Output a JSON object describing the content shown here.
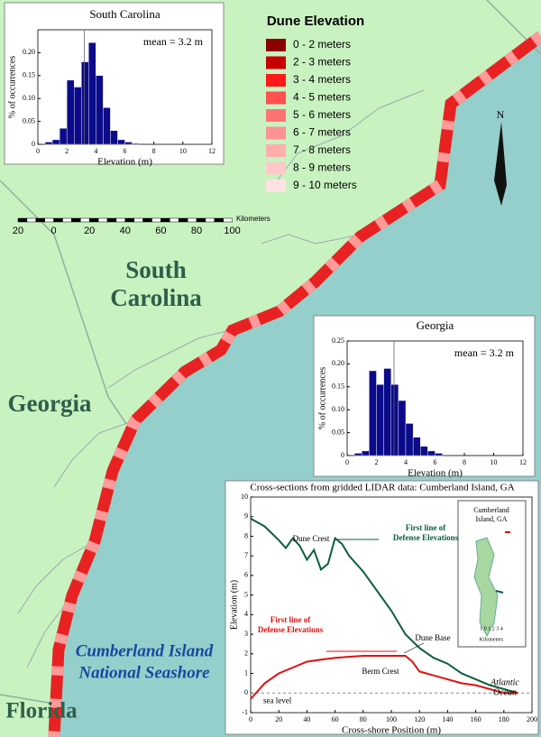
{
  "map": {
    "legend": {
      "title": "Dune Elevation",
      "items": [
        {
          "label": "0 - 2 meters",
          "color": "#8b0000"
        },
        {
          "label": "2 - 3 meters",
          "color": "#c80000"
        },
        {
          "label": "3 - 4 meters",
          "color": "#ff1a1a"
        },
        {
          "label": "4 - 5 meters",
          "color": "#ff4f4f"
        },
        {
          "label": "5 - 6 meters",
          "color": "#ff7373"
        },
        {
          "label": "6 - 7 meters",
          "color": "#ff9393"
        },
        {
          "label": "7 - 8 meters",
          "color": "#ffaeae"
        },
        {
          "label": "8 - 9 meters",
          "color": "#ffc9c9"
        },
        {
          "label": "9 - 10 meters",
          "color": "#ffe2e2"
        }
      ]
    },
    "scale_bar": {
      "ticks": [
        "20",
        "0",
        "20",
        "40",
        "60",
        "80",
        "100"
      ],
      "unit": "Kilometers"
    },
    "labels": {
      "south_carolina": [
        "South",
        "Carolina"
      ],
      "georgia": "Georgia",
      "florida": "Florida",
      "cumberland": [
        "Cumberland Island",
        "National Seashore"
      ]
    }
  },
  "chart_data": [
    {
      "type": "histogram",
      "title": "South Carolina",
      "xlabel": "Elevation (m)",
      "ylabel": "% of occurrences",
      "bins": [
        0.5,
        1,
        1.5,
        2,
        2.5,
        3,
        3.5,
        4,
        4.5,
        5,
        5.5,
        6,
        6.5,
        7
      ],
      "values": [
        0.005,
        0.01,
        0.035,
        0.14,
        0.125,
        0.18,
        0.222,
        0.15,
        0.08,
        0.03,
        0.01,
        0.005,
        0.002
      ],
      "color": "#0b0b8a",
      "xlim": [
        0,
        12
      ],
      "xticks": [
        0,
        2,
        4,
        6,
        8,
        10,
        12
      ],
      "ylim": [
        0,
        0.25
      ],
      "yticks": [
        0,
        0.05,
        {
          "value": 0.1,
          "label": "0.10"
        },
        0.15,
        {
          "value": 0.2,
          "label": "0.20"
        }
      ],
      "mean": {
        "value": 3.2,
        "label": "mean = 3.2 m"
      }
    },
    {
      "type": "histogram",
      "title": "Georgia",
      "xlabel": "Elevation (m)",
      "ylabel": "% of occurrences",
      "bins": [
        0.5,
        1,
        1.5,
        2,
        2.5,
        3,
        3.5,
        4,
        4.5,
        5,
        5.5,
        6,
        6.5
      ],
      "values": [
        0.005,
        0.01,
        0.185,
        0.155,
        0.19,
        0.155,
        0.12,
        0.07,
        0.04,
        0.02,
        0.01,
        0.005
      ],
      "color": "#0b0b8a",
      "xlim": [
        0,
        12
      ],
      "xticks": [
        0,
        2,
        4,
        6,
        8,
        10,
        12
      ],
      "ylim": [
        0,
        0.25
      ],
      "yticks": [
        0,
        0.05,
        {
          "value": 0.1,
          "label": "0.10"
        },
        0.15,
        {
          "value": 0.2,
          "label": "0.20"
        },
        0.25
      ],
      "mean": {
        "value": 3.2,
        "label": "mean = 3.2 m"
      }
    },
    {
      "type": "line",
      "title": "Cross-sections from gridded LIDAR data: Cumberland Island, GA",
      "xlabel": "Cross-shore Position (m)",
      "ylabel": "Elevation (m)",
      "xlim": [
        0,
        200
      ],
      "xticks": [
        0,
        20,
        40,
        60,
        80,
        100,
        120,
        140,
        160,
        180,
        200
      ],
      "ylim": [
        -1,
        10
      ],
      "yticks": [
        -1,
        0,
        1,
        2,
        3,
        4,
        5,
        6,
        7,
        8,
        9,
        10
      ],
      "series": [
        {
          "color": "#0b5e3a",
          "x": [
            0,
            10,
            20,
            25,
            30,
            35,
            40,
            45,
            50,
            55,
            60,
            65,
            70,
            80,
            90,
            100,
            110,
            120,
            130,
            140,
            150,
            160,
            170,
            180,
            190
          ],
          "values": [
            8.9,
            8.5,
            7.8,
            7.4,
            7.9,
            7.5,
            6.8,
            7.3,
            6.3,
            6.6,
            7.9,
            7.6,
            7.0,
            6.2,
            5.2,
            4.2,
            3.0,
            2.3,
            1.8,
            1.5,
            1.0,
            0.7,
            0.4,
            0.2,
            0
          ]
        },
        {
          "color": "#e01010",
          "x": [
            0,
            10,
            20,
            30,
            40,
            50,
            60,
            80,
            100,
            110,
            115,
            120,
            130,
            140,
            150,
            160,
            170,
            180,
            190
          ],
          "values": [
            -0.3,
            0.5,
            1.0,
            1.3,
            1.6,
            1.7,
            1.8,
            1.9,
            1.9,
            1.9,
            1.6,
            1.1,
            0.9,
            0.7,
            0.5,
            0.4,
            0.2,
            0,
            0
          ]
        }
      ],
      "sea_level": {
        "value": 0,
        "label": "sea level"
      },
      "annotations": {
        "dune_crest": "Dune Crest",
        "green_note": [
          "First line of",
          "Defense Elevations"
        ],
        "red_note": [
          "First line of",
          "Defense Elevations"
        ],
        "berm_crest": "Berm Crest",
        "dune_base": "Dune Base",
        "ocean": [
          "Atlantic",
          "Ocean"
        ]
      },
      "inset": {
        "title": [
          "Cumberland",
          "Island, GA"
        ],
        "scale": "1 0 1 2 3 4",
        "unit": "Kilometers"
      }
    }
  ]
}
